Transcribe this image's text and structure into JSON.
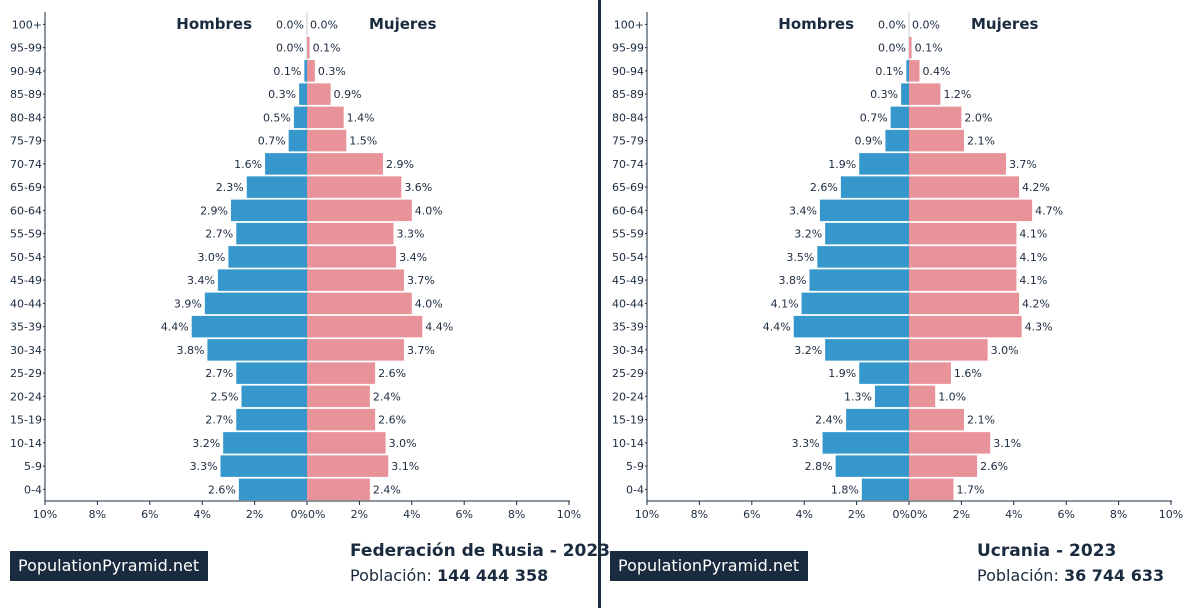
{
  "brand": "PopulationPyramid.net",
  "colors": {
    "male": "#3597cc",
    "female": "#e8929a",
    "text": "#1b2b3f",
    "axis": "#1b2b3f"
  },
  "age_groups": [
    "0-4",
    "5-9",
    "10-14",
    "15-19",
    "20-24",
    "25-29",
    "30-34",
    "35-39",
    "40-44",
    "45-49",
    "50-54",
    "55-59",
    "60-64",
    "65-69",
    "70-74",
    "75-79",
    "80-84",
    "85-89",
    "90-94",
    "95-99",
    "100+"
  ],
  "left": {
    "country": "Federación de Rusia - 2023",
    "population_label": "Población:",
    "population_value": "144 444 358"
  },
  "right": {
    "country": "Ucrania - 2023",
    "population_label": "Población:",
    "population_value": "36 744 633"
  },
  "chart_data": [
    {
      "type": "bar",
      "title": "Federación de Rusia - 2023",
      "orientation": "horizontal-pyramid",
      "categories": [
        "0-4",
        "5-9",
        "10-14",
        "15-19",
        "20-24",
        "25-29",
        "30-34",
        "35-39",
        "40-44",
        "45-49",
        "50-54",
        "55-59",
        "60-64",
        "65-69",
        "70-74",
        "75-79",
        "80-84",
        "85-89",
        "90-94",
        "95-99",
        "100+"
      ],
      "series": [
        {
          "name": "Hombres",
          "values": [
            2.6,
            3.3,
            3.2,
            2.7,
            2.5,
            2.7,
            3.8,
            4.4,
            3.9,
            3.4,
            3.0,
            2.7,
            2.9,
            2.3,
            1.6,
            0.7,
            0.5,
            0.3,
            0.1,
            0.0,
            0.0
          ]
        },
        {
          "name": "Mujeres",
          "values": [
            2.4,
            3.1,
            3.0,
            2.6,
            2.4,
            2.6,
            3.7,
            4.4,
            4.0,
            3.7,
            3.4,
            3.3,
            4.0,
            3.6,
            2.9,
            1.5,
            1.4,
            0.9,
            0.3,
            0.1,
            0.0
          ]
        }
      ],
      "xlim": [
        -10,
        10
      ],
      "xticks": [
        "10%",
        "8%",
        "6%",
        "4%",
        "2%",
        "0%",
        "0%",
        "2%",
        "4%",
        "6%",
        "8%",
        "10%"
      ],
      "legend": [
        "Hombres",
        "Mujeres"
      ]
    },
    {
      "type": "bar",
      "title": "Ucrania - 2023",
      "orientation": "horizontal-pyramid",
      "categories": [
        "0-4",
        "5-9",
        "10-14",
        "15-19",
        "20-24",
        "25-29",
        "30-34",
        "35-39",
        "40-44",
        "45-49",
        "50-54",
        "55-59",
        "60-64",
        "65-69",
        "70-74",
        "75-79",
        "80-84",
        "85-89",
        "90-94",
        "95-99",
        "100+"
      ],
      "series": [
        {
          "name": "Hombres",
          "values": [
            1.8,
            2.8,
            3.3,
            2.4,
            1.3,
            1.9,
            3.2,
            4.4,
            4.1,
            3.8,
            3.5,
            3.2,
            3.4,
            2.6,
            1.9,
            0.9,
            0.7,
            0.3,
            0.1,
            0.0,
            0.0
          ]
        },
        {
          "name": "Mujeres",
          "values": [
            1.7,
            2.6,
            3.1,
            2.1,
            1.0,
            1.6,
            3.0,
            4.3,
            4.2,
            4.1,
            4.1,
            4.1,
            4.7,
            4.2,
            3.7,
            2.1,
            2.0,
            1.2,
            0.4,
            0.1,
            0.0
          ]
        }
      ],
      "xlim": [
        -10,
        10
      ],
      "xticks": [
        "10%",
        "8%",
        "6%",
        "4%",
        "2%",
        "0%",
        "0%",
        "2%",
        "4%",
        "6%",
        "8%",
        "10%"
      ],
      "legend": [
        "Hombres",
        "Mujeres"
      ]
    }
  ]
}
